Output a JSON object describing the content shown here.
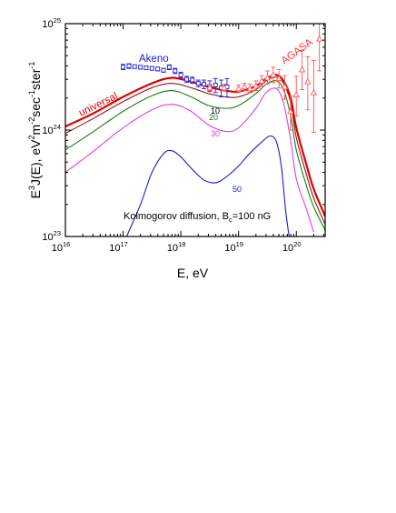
{
  "chart_data": {
    "type": "line",
    "xlabel": "E, eV",
    "ylabel": {
      "base": "E",
      "sup1": "3",
      "mid": "J(E),  eV",
      "sup2": "2",
      "mid2": "m",
      "sup3": "-2",
      "mid3": "sec",
      "sup4": "-1",
      "mid4": "ster",
      "sup5": "-1"
    },
    "x_scale": "log",
    "y_scale": "log",
    "xlim": [
      1e+16,
      3.16e+20
    ],
    "ylim": [
      1e+23,
      1e+25
    ],
    "x_ticks": [
      {
        "base": "10",
        "exp": "16",
        "value": 1e+16
      },
      {
        "base": "10",
        "exp": "17",
        "value": 1e+17
      },
      {
        "base": "10",
        "exp": "18",
        "value": 1e+18
      },
      {
        "base": "10",
        "exp": "19",
        "value": 1e+19
      },
      {
        "base": "10",
        "exp": "20",
        "value": 1e+20
      }
    ],
    "y_ticks": [
      {
        "base": "10",
        "exp": "23",
        "value": 1e+23
      },
      {
        "base": "10",
        "exp": "24",
        "value": 1e+24
      },
      {
        "base": "10",
        "exp": "25",
        "value": 1e+25
      }
    ],
    "annotation": {
      "text": "Kolmogorov diffusion, B",
      "sub": "c",
      "rest": "=100 nG"
    },
    "series": [
      {
        "name": "universal",
        "color": "#e00000",
        "width": 2.2,
        "label_color": "#e00000",
        "x": [
          1e+16,
          3.16e+16,
          1e+17,
          3.16e+17,
          7e+17,
          1.5e+18,
          3e+18,
          6e+18,
          1e+19,
          2e+19,
          3e+19,
          4.5e+19,
          6e+19,
          8e+19,
          1e+20,
          1.5e+20,
          2e+20,
          3.16e+20
        ],
        "y": [
          1.08e+24,
          1.45e+24,
          2.05e+24,
          2.75e+24,
          3.1e+24,
          2.85e+24,
          2.55e+24,
          2.35e+24,
          2.3e+24,
          2.6e+24,
          3.05e+24,
          3.3e+24,
          2.9e+24,
          2e+24,
          1.05e+24,
          4.7e+23,
          2.8e+23,
          1.55e+23
        ]
      },
      {
        "name": "",
        "color": "#8b1a1a",
        "width": 1.1,
        "x": [
          1e+16,
          3.16e+16,
          1e+17,
          3.16e+17,
          7e+17,
          1.5e+18,
          3e+18,
          6e+18,
          1e+19,
          2e+19,
          3e+19,
          4.5e+19,
          6e+19,
          8e+19,
          1e+20,
          1.5e+20,
          2e+20,
          3.16e+20
        ],
        "y": [
          9.3e+23,
          1.3e+24,
          1.85e+24,
          2.5e+24,
          2.75e+24,
          2.5e+24,
          2.2e+24,
          2.05e+24,
          2.05e+24,
          2.4e+24,
          2.9e+24,
          3.15e+24,
          2.75e+24,
          1.8e+24,
          8.5e+23,
          3.8e+23,
          2.3e+23,
          1.3e+23
        ]
      },
      {
        "name": "10",
        "color": "#1a7a1a",
        "width": 1.1,
        "label_color": "#000000",
        "x": [
          1e+16,
          3.16e+16,
          1e+17,
          3.16e+17,
          7e+17,
          1.5e+18,
          3e+18,
          6e+18,
          1e+19,
          2e+19,
          3e+19,
          4.5e+19,
          6e+19,
          8e+19,
          1e+20,
          1.5e+20,
          2e+20,
          3.16e+20
        ],
        "y": [
          6.5e+23,
          9.8e+23,
          1.5e+24,
          2.1e+24,
          2.35e+24,
          2.05e+24,
          1.7e+24,
          1.6e+24,
          1.7e+24,
          2.2e+24,
          2.7e+24,
          2.9e+24,
          2.4e+24,
          1.35e+24,
          6.5e+23,
          3e+23,
          1.9e+23,
          1.15e+23
        ]
      },
      {
        "name": "20",
        "color": "#e040e0",
        "width": 1.1,
        "label_color": "#1a7a1a",
        "x": [
          1e+16,
          3.16e+16,
          1e+17,
          3.16e+17,
          7e+17,
          1.5e+18,
          3e+18,
          6e+18,
          1e+19,
          2e+19,
          3e+19,
          4.5e+19,
          6e+19,
          8e+19,
          1e+20,
          1.5e+20,
          2e+20
        ],
        "y": [
          4e+23,
          6.4e+23,
          1.05e+24,
          1.55e+24,
          1.75e+24,
          1.5e+24,
          1.12e+24,
          9.7e+23,
          1.05e+24,
          1.6e+24,
          2.25e+24,
          2.45e+24,
          1.8e+24,
          8e+23,
          3.5e+23,
          1.8e+23,
          1.1e+23
        ]
      },
      {
        "name": "30",
        "color": "#e040e0",
        "width": 0,
        "label_color": "#e040e0",
        "x": [],
        "y": []
      },
      {
        "name": "50",
        "color": "#1a1ad0",
        "width": 1.1,
        "label_color": "#1a1ad0",
        "x": [
          1.15e+17,
          2e+17,
          3.16e+17,
          5e+17,
          7e+17,
          1e+18,
          1.5e+18,
          2.5e+18,
          4e+18,
          6e+18,
          1e+19,
          1.5e+19,
          2.5e+19,
          3.5e+19,
          4.5e+19,
          5.5e+19,
          6.5e+19,
          7.5e+19
        ],
        "y": [
          1e+23,
          2e+23,
          4e+23,
          6e+23,
          6.4e+23,
          5.6e+23,
          4.4e+23,
          3.4e+23,
          3.2e+23,
          3.6e+23,
          4.6e+23,
          5.9e+23,
          7.7e+23,
          8.8e+23,
          7.8e+23,
          4.6e+23,
          1.8e+23,
          1e+23
        ]
      }
    ],
    "datasets": [
      {
        "name": "Akeno",
        "color": "#2020d0",
        "marker": "square",
        "points": [
          {
            "x": 1e+17,
            "y": 3.9e+24,
            "lo": 3.7e+24,
            "hi": 4.15e+24
          },
          {
            "x": 1.26e+17,
            "y": 4e+24,
            "lo": 3.8e+24,
            "hi": 4.2e+24
          },
          {
            "x": 1.58e+17,
            "y": 3.95e+24,
            "lo": 3.8e+24,
            "hi": 4.1e+24
          },
          {
            "x": 2e+17,
            "y": 3.9e+24,
            "lo": 3.75e+24,
            "hi": 4.05e+24
          },
          {
            "x": 2.51e+17,
            "y": 3.85e+24,
            "lo": 3.7e+24,
            "hi": 4e+24
          },
          {
            "x": 3.16e+17,
            "y": 3.8e+24,
            "lo": 3.65e+24,
            "hi": 3.95e+24
          },
          {
            "x": 3.98e+17,
            "y": 3.75e+24,
            "lo": 3.6e+24,
            "hi": 3.9e+24
          },
          {
            "x": 5.01e+17,
            "y": 3.65e+24,
            "lo": 3.5e+24,
            "hi": 3.8e+24
          },
          {
            "x": 6.31e+17,
            "y": 3.9e+24,
            "lo": 3.7e+24,
            "hi": 4.1e+24
          },
          {
            "x": 7.94e+17,
            "y": 3.6e+24,
            "lo": 3.4e+24,
            "hi": 3.8e+24
          },
          {
            "x": 1e+18,
            "y": 3.3e+24,
            "lo": 3.1e+24,
            "hi": 3.5e+24
          },
          {
            "x": 1.26e+18,
            "y": 3e+24,
            "lo": 2.8e+24,
            "hi": 3.2e+24
          },
          {
            "x": 1.58e+18,
            "y": 2.95e+24,
            "lo": 2.75e+24,
            "hi": 3.15e+24
          },
          {
            "x": 2e+18,
            "y": 2.75e+24,
            "lo": 2.55e+24,
            "hi": 2.95e+24
          },
          {
            "x": 2.51e+18,
            "y": 2.7e+24,
            "lo": 2.45e+24,
            "hi": 2.95e+24
          },
          {
            "x": 3.16e+18,
            "y": 2.6e+24,
            "lo": 2.3e+24,
            "hi": 2.9e+24
          },
          {
            "x": 3.98e+18,
            "y": 2.65e+24,
            "lo": 2.25e+24,
            "hi": 3.05e+24
          },
          {
            "x": 5.01e+18,
            "y": 2.5e+24,
            "lo": 2.05e+24,
            "hi": 2.95e+24
          },
          {
            "x": 6.31e+18,
            "y": 2.55e+24,
            "lo": 2.05e+24,
            "hi": 3.05e+24
          }
        ]
      },
      {
        "name": "AGASA",
        "color": "#ff5555",
        "marker": "triangle",
        "points": [
          {
            "x": 3.16e+18,
            "y": 2.5e+24,
            "lo": 2.35e+24,
            "hi": 2.7e+24
          },
          {
            "x": 5.62e+18,
            "y": 2.5e+24,
            "lo": 2.35e+24,
            "hi": 2.7e+24
          },
          {
            "x": 1e+19,
            "y": 2.45e+24,
            "lo": 2.3e+24,
            "hi": 2.65e+24
          },
          {
            "x": 1.26e+19,
            "y": 2.55e+24,
            "lo": 2.35e+24,
            "hi": 2.75e+24
          },
          {
            "x": 1.58e+19,
            "y": 2.45e+24,
            "lo": 2.25e+24,
            "hi": 2.7e+24
          },
          {
            "x": 2e+19,
            "y": 2.6e+24,
            "lo": 2.35e+24,
            "hi": 2.9e+24
          },
          {
            "x": 2.51e+19,
            "y": 2.9e+24,
            "lo": 2.6e+24,
            "hi": 3.25e+24
          },
          {
            "x": 3.16e+19,
            "y": 3.1e+24,
            "lo": 2.7e+24,
            "hi": 3.6e+24
          },
          {
            "x": 3.98e+19,
            "y": 3.3e+24,
            "lo": 2.8e+24,
            "hi": 3.9e+24
          },
          {
            "x": 5.01e+19,
            "y": 3.05e+24,
            "lo": 2.5e+24,
            "hi": 3.7e+24
          },
          {
            "x": 6.31e+19,
            "y": 2.55e+24,
            "lo": 1.95e+24,
            "hi": 3.25e+24
          },
          {
            "x": 7.94e+19,
            "y": 1.5e+24,
            "lo": 1e+24,
            "hi": 2.1e+24
          },
          {
            "x": 1e+20,
            "y": 2.15e+24,
            "lo": 1.35e+24,
            "hi": 3.2e+24
          },
          {
            "x": 1.26e+20,
            "y": 3.7e+24,
            "lo": 2.4e+24,
            "hi": 5.6e+24
          },
          {
            "x": 1.58e+20,
            "y": 2.85e+24,
            "lo": 1.55e+24,
            "hi": 4.9e+24
          },
          {
            "x": 2e+20,
            "y": 2.25e+24,
            "lo": 9.5e+23,
            "hi": 4.5e+24
          },
          {
            "x": 2.51e+20,
            "y": 7.2e+24,
            "lo": 3.6e+24,
            "hi": 1e+25
          }
        ]
      }
    ]
  }
}
